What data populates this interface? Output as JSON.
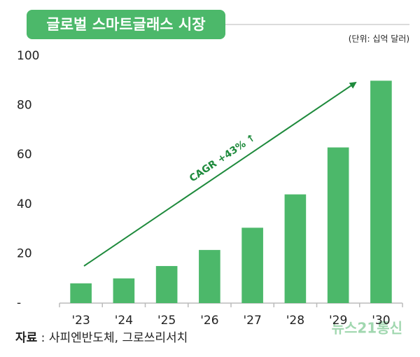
{
  "chart_data": {
    "type": "bar",
    "title": "글로벌 스마트글래스 시장",
    "unit": "(단위: 십억 달러)",
    "categories": [
      "'23",
      "'24",
      "'25",
      "'26",
      "'27",
      "'28",
      "'29",
      "'30"
    ],
    "values": [
      8,
      10,
      15,
      21.5,
      30.5,
      44,
      63,
      90
    ],
    "color": "#4cb86a",
    "ylim": [
      0,
      100
    ],
    "yticks": [
      {
        "value": 0,
        "label": "-"
      },
      20,
      40,
      60,
      80,
      100
    ],
    "annotation": "CAGR +43% ↑",
    "source_label": "자료",
    "source": " : 사피엔반도체, 그로쓰리서치",
    "watermark": "뉴스21통신"
  }
}
